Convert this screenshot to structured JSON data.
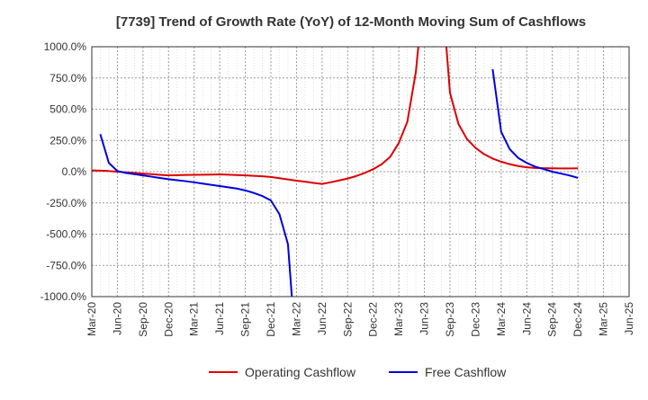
{
  "chart_data": {
    "type": "line",
    "title": "[7739]  Trend of Growth Rate (YoY) of 12-Month Moving Sum of Cashflows",
    "y_unit": "%",
    "ylim": [
      -1000,
      1000
    ],
    "y_ticks": [
      1000,
      750,
      500,
      250,
      0,
      -250,
      -500,
      -750,
      -1000
    ],
    "y_tick_labels": [
      "1000.0%",
      "750.0%",
      "500.0%",
      "250.0%",
      "0.0%",
      "-250.0%",
      "-500.0%",
      "-750.0%",
      "-1000.0%"
    ],
    "x_tick_labels": [
      "Mar-20",
      "Jun-20",
      "Sep-20",
      "Dec-20",
      "Mar-21",
      "Jun-21",
      "Sep-21",
      "Dec-21",
      "Mar-22",
      "Jun-22",
      "Sep-22",
      "Dec-22",
      "Mar-23",
      "Jun-23",
      "Sep-23",
      "Dec-23",
      "Mar-24",
      "Jun-24",
      "Sep-24",
      "Dec-24",
      "Mar-25",
      "Jun-25"
    ],
    "grid": true,
    "legend_position": "bottom",
    "series": [
      {
        "name": "Operating Cashflow",
        "color": "#dd0000",
        "points": [
          [
            "Mar-20",
            10
          ],
          [
            "Apr-20",
            8
          ],
          [
            "May-20",
            5
          ],
          [
            "Jun-20",
            0
          ],
          [
            "Jul-20",
            -5
          ],
          [
            "Aug-20",
            -10
          ],
          [
            "Sep-20",
            -15
          ],
          [
            "Oct-20",
            -20
          ],
          [
            "Nov-20",
            -25
          ],
          [
            "Dec-20",
            -30
          ],
          [
            "Jan-21",
            -28
          ],
          [
            "Feb-21",
            -26
          ],
          [
            "Mar-21",
            -25
          ],
          [
            "Apr-21",
            -24
          ],
          [
            "May-21",
            -23
          ],
          [
            "Jun-21",
            -22
          ],
          [
            "Jul-21",
            -24
          ],
          [
            "Aug-21",
            -27
          ],
          [
            "Sep-21",
            -30
          ],
          [
            "Oct-21",
            -33
          ],
          [
            "Nov-21",
            -37
          ],
          [
            "Dec-21",
            -42
          ],
          [
            "Jan-22",
            -52
          ],
          [
            "Feb-22",
            -62
          ],
          [
            "Mar-22",
            -72
          ],
          [
            "Apr-22",
            -80
          ],
          [
            "May-22",
            -90
          ],
          [
            "Jun-22",
            -98
          ],
          [
            "Jul-22",
            -85
          ],
          [
            "Aug-22",
            -70
          ],
          [
            "Sep-22",
            -55
          ],
          [
            "Oct-22",
            -35
          ],
          [
            "Nov-22",
            -10
          ],
          [
            "Dec-22",
            20
          ],
          [
            "Jan-23",
            60
          ],
          [
            "Feb-23",
            120
          ],
          [
            "Mar-23",
            230
          ],
          [
            "Apr-23",
            400
          ],
          [
            "May-23",
            800
          ],
          [
            "Jun-23",
            1500
          ],
          [
            "Aug-23",
            1500
          ],
          [
            "Sep-23",
            630
          ],
          [
            "Oct-23",
            380
          ],
          [
            "Nov-23",
            260
          ],
          [
            "Dec-23",
            190
          ],
          [
            "Jan-24",
            140
          ],
          [
            "Feb-24",
            105
          ],
          [
            "Mar-24",
            80
          ],
          [
            "Apr-24",
            60
          ],
          [
            "May-24",
            45
          ],
          [
            "Jun-24",
            35
          ],
          [
            "Jul-24",
            30
          ],
          [
            "Aug-24",
            28
          ],
          [
            "Sep-24",
            27
          ],
          [
            "Oct-24",
            26
          ],
          [
            "Nov-24",
            26
          ],
          [
            "Dec-24",
            27
          ]
        ]
      },
      {
        "name": "Free Cashflow",
        "color": "#0000dd",
        "points": [
          [
            "Apr-20",
            300
          ],
          [
            "May-20",
            70
          ],
          [
            "Jun-20",
            5
          ],
          [
            "Jul-20",
            -10
          ],
          [
            "Aug-20",
            -20
          ],
          [
            "Sep-20",
            -30
          ],
          [
            "Oct-20",
            -40
          ],
          [
            "Nov-20",
            -50
          ],
          [
            "Dec-20",
            -60
          ],
          [
            "Jan-21",
            -68
          ],
          [
            "Feb-21",
            -76
          ],
          [
            "Mar-21",
            -85
          ],
          [
            "Apr-21",
            -95
          ],
          [
            "May-21",
            -105
          ],
          [
            "Jun-21",
            -115
          ],
          [
            "Jul-21",
            -125
          ],
          [
            "Aug-21",
            -135
          ],
          [
            "Sep-21",
            -150
          ],
          [
            "Oct-21",
            -170
          ],
          [
            "Nov-21",
            -195
          ],
          [
            "Dec-21",
            -230
          ],
          [
            "Jan-22",
            -340
          ],
          [
            "Feb-22",
            -580
          ],
          [
            "Mar-22",
            -1500
          ]
        ]
      },
      {
        "name": "Free Cashflow",
        "color": "#0000dd",
        "points": [
          [
            "Feb-24",
            820
          ],
          [
            "Mar-24",
            320
          ],
          [
            "Apr-24",
            180
          ],
          [
            "May-24",
            110
          ],
          [
            "Jun-24",
            70
          ],
          [
            "Jul-24",
            40
          ],
          [
            "Aug-24",
            20
          ],
          [
            "Sep-24",
            0
          ],
          [
            "Oct-24",
            -15
          ],
          [
            "Nov-24",
            -30
          ],
          [
            "Dec-24",
            -50
          ]
        ]
      }
    ],
    "legend": [
      {
        "name": "Operating Cashflow",
        "color": "#dd0000"
      },
      {
        "name": "Free Cashflow",
        "color": "#0000dd"
      }
    ]
  }
}
